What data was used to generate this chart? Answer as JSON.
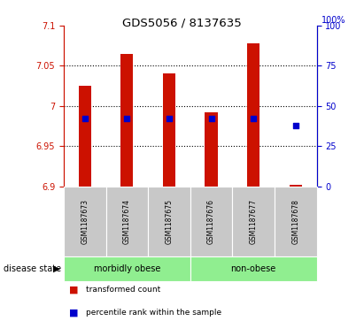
{
  "title": "GDS5056 / 8137635",
  "samples": [
    "GSM1187673",
    "GSM1187674",
    "GSM1187675",
    "GSM1187676",
    "GSM1187677",
    "GSM1187678"
  ],
  "bar_tops": [
    7.025,
    7.065,
    7.04,
    6.992,
    7.078,
    6.902
  ],
  "bar_bottoms": [
    6.9,
    6.9,
    6.9,
    6.9,
    6.9,
    6.9
  ],
  "percentile_values": [
    6.984,
    6.984,
    6.984,
    6.984,
    6.984,
    6.975
  ],
  "bar_color": "#cc1100",
  "percentile_color": "#0000cc",
  "ylim": [
    6.9,
    7.1
  ],
  "right_ylim": [
    0,
    100
  ],
  "yticks_left": [
    6.9,
    6.95,
    7.0,
    7.05,
    7.1
  ],
  "yticks_right": [
    0,
    25,
    50,
    75,
    100
  ],
  "grid_values": [
    6.95,
    7.0,
    7.05
  ],
  "groups": [
    {
      "label": "morbidly obese",
      "start": 0,
      "end": 3,
      "color": "#90ee90"
    },
    {
      "label": "non-obese",
      "start": 3,
      "end": 6,
      "color": "#90ee90"
    }
  ],
  "disease_label": "disease state",
  "legend_items": [
    {
      "label": "transformed count",
      "color": "#cc1100"
    },
    {
      "label": "percentile rank within the sample",
      "color": "#0000cc"
    }
  ],
  "label_area_color": "#c8c8c8",
  "group_box_color": "#90ee90",
  "bar_width": 0.3
}
